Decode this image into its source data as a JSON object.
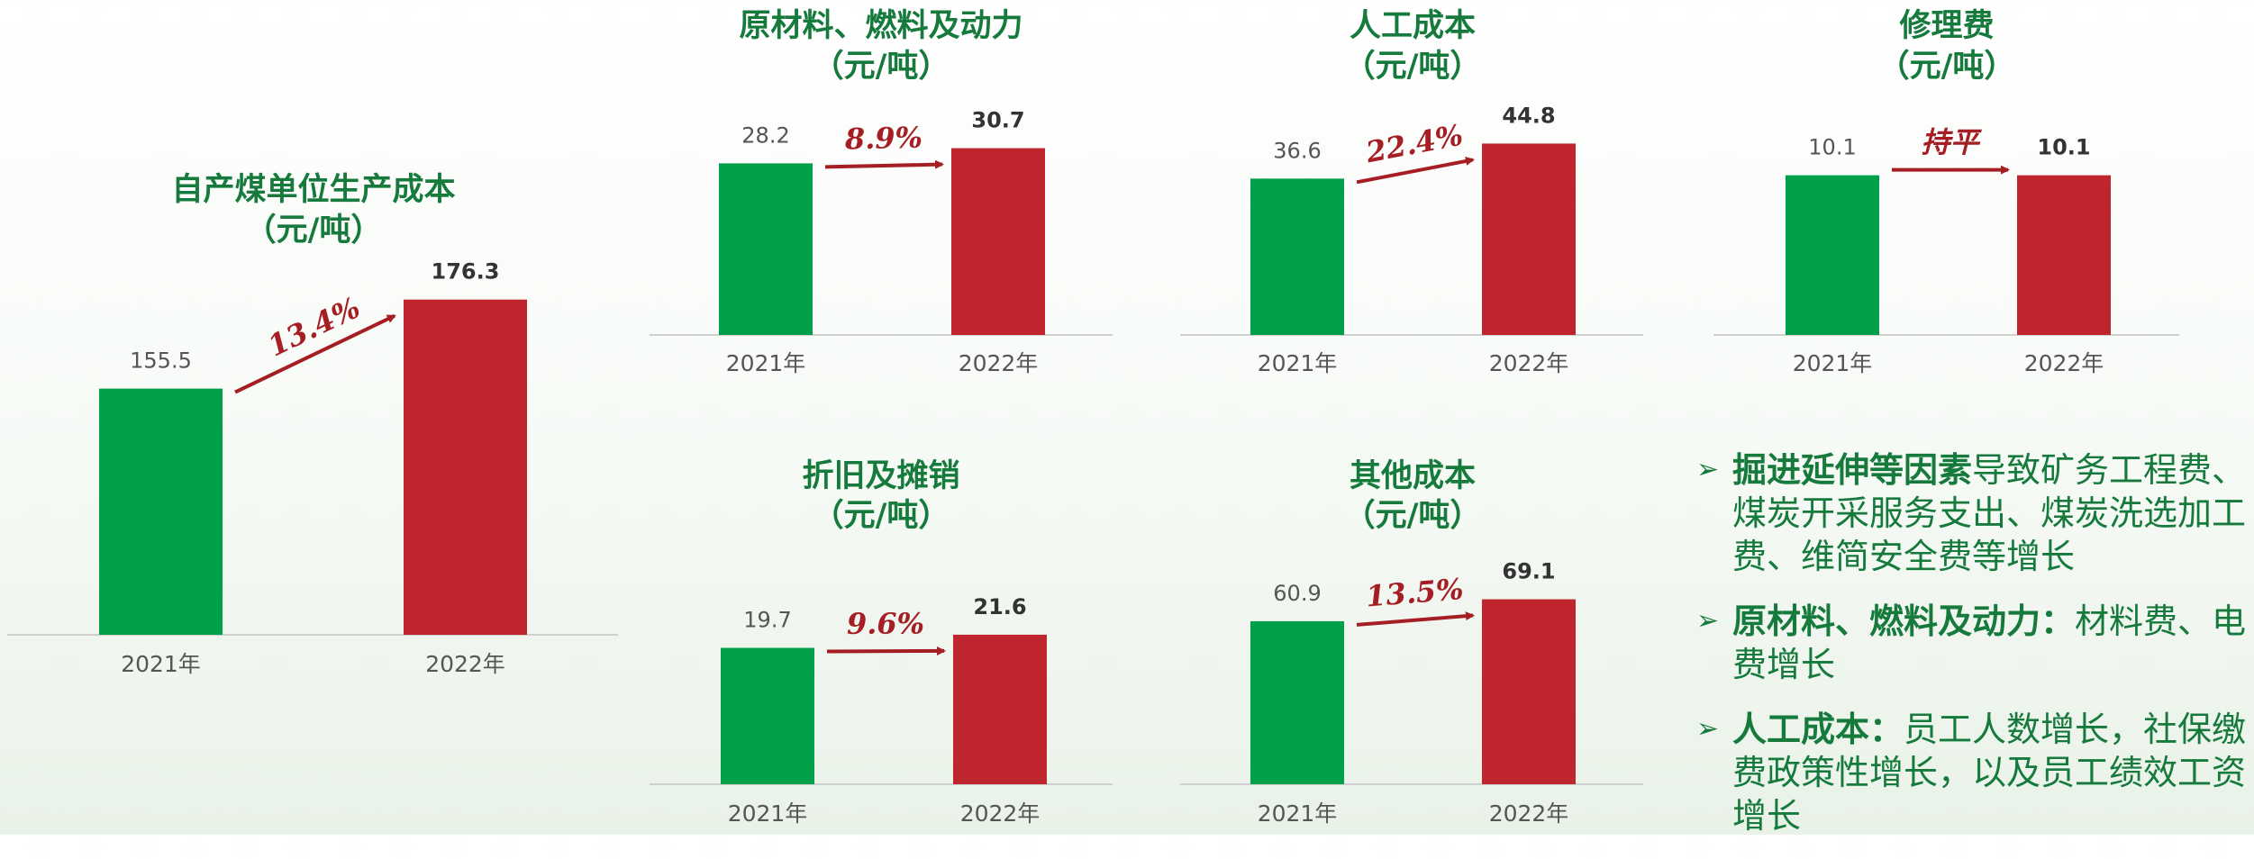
{
  "chart_data": [
    {
      "type": "bar",
      "title": "自产煤单位生产成本",
      "subtitle": "（元/吨）",
      "categories": [
        "2021年",
        "2022年"
      ],
      "values": [
        155.5,
        176.3
      ],
      "colors": [
        "#00a04a",
        "#be252c"
      ],
      "ylim": [
        98,
        200
      ],
      "annotation": "13.4%"
    },
    {
      "type": "bar",
      "title": "原材料、燃料及动力",
      "subtitle": "（元/吨）",
      "categories": [
        "2021年",
        "2022年"
      ],
      "values": [
        28.2,
        30.7
      ],
      "colors": [
        "#00a04a",
        "#be252c"
      ],
      "ylim": [
        0,
        33
      ],
      "annotation": "8.9%"
    },
    {
      "type": "bar",
      "title": "人工成本",
      "subtitle": "（元/吨）",
      "categories": [
        "2021年",
        "2022年"
      ],
      "values": [
        36.6,
        44.8
      ],
      "colors": [
        "#00a04a",
        "#be252c"
      ],
      "ylim": [
        0,
        47
      ],
      "annotation": "22.4%"
    },
    {
      "type": "bar",
      "title": "修理费",
      "subtitle": "（元/吨）",
      "categories": [
        "2021年",
        "2022年"
      ],
      "values": [
        10.1,
        10.1
      ],
      "colors": [
        "#00a04a",
        "#be252c"
      ],
      "ylim": [
        0,
        12.7
      ],
      "annotation": "持平"
    },
    {
      "type": "bar",
      "title": "折旧及摊销",
      "subtitle": "（元/吨）",
      "categories": [
        "2021年",
        "2022年"
      ],
      "values": [
        19.7,
        21.6
      ],
      "colors": [
        "#00a04a",
        "#be252c"
      ],
      "ylim": [
        0,
        29
      ],
      "annotation": "9.6%"
    },
    {
      "type": "bar",
      "title": "其他成本",
      "subtitle": "（元/吨）",
      "categories": [
        "2021年",
        "2022年"
      ],
      "values": [
        60.9,
        69.1
      ],
      "colors": [
        "#00a04a",
        "#be252c"
      ],
      "ylim": [
        0,
        75
      ],
      "annotation": "13.5%"
    }
  ],
  "bullets": [
    {
      "bold": "掘进延伸等因素",
      "text": "导致矿务工程费、煤炭开采服务支出、煤炭洗选加工费、维简安全费等增长"
    },
    {
      "bold": "原材料、燃料及动力：",
      "text": "材料费、电费增长"
    },
    {
      "bold": "人工成本：",
      "text": "员工人数增长，社保缴费政策性增长，以及员工绩效工资增长"
    }
  ]
}
